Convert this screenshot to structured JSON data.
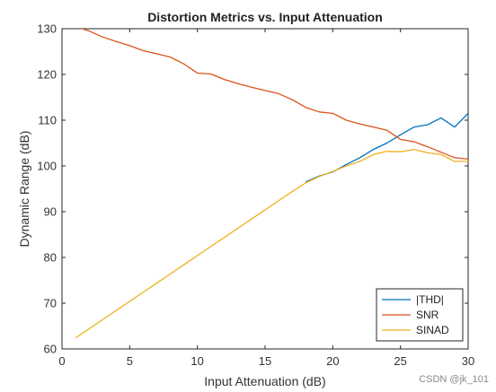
{
  "chart_data": {
    "type": "line",
    "title": "Distortion Metrics vs. Input Attenuation",
    "xlabel": "Input Attenuation (dB)",
    "ylabel": "Dynamic Range (dB)",
    "xlim": [
      0,
      30
    ],
    "ylim": [
      60,
      130
    ],
    "xticks": [
      0,
      5,
      10,
      15,
      20,
      25,
      30
    ],
    "yticks": [
      60,
      70,
      80,
      90,
      100,
      110,
      120,
      130
    ],
    "grid": false,
    "legend_position": "bottom-right",
    "series": [
      {
        "name": "|THD|",
        "color": "#0072BD",
        "x": [
          18,
          19,
          20,
          21,
          22,
          23,
          24,
          25,
          26,
          27,
          28,
          29,
          30
        ],
        "y": [
          96.5,
          97.8,
          98.7,
          100.3,
          101.8,
          103.6,
          105.0,
          106.8,
          108.5,
          109.0,
          110.5,
          108.5,
          111.5
        ]
      },
      {
        "name": "SNR",
        "color": "#D95319",
        "x": [
          1,
          2,
          3,
          4,
          5,
          6,
          7,
          8,
          9,
          10,
          11,
          12,
          13,
          14,
          15,
          16,
          17,
          18,
          19,
          20,
          21,
          22,
          23,
          24,
          25,
          26,
          27,
          28,
          29,
          30
        ],
        "y": [
          130.5,
          129.5,
          128.2,
          127.2,
          126.3,
          125.2,
          124.5,
          123.8,
          122.3,
          120.3,
          120.1,
          118.9,
          118.0,
          117.2,
          116.5,
          115.8,
          114.5,
          112.8,
          111.8,
          111.5,
          110.0,
          109.2,
          108.5,
          107.8,
          105.8,
          105.3,
          104.2,
          103.0,
          101.8,
          101.5
        ]
      },
      {
        "name": "SINAD",
        "color": "#EDB120",
        "x": [
          1,
          2,
          3,
          4,
          5,
          6,
          7,
          8,
          9,
          10,
          11,
          12,
          13,
          14,
          15,
          16,
          17,
          18,
          19,
          20,
          21,
          22,
          23,
          24,
          25,
          26,
          27,
          28,
          29,
          30
        ],
        "y": [
          62.4,
          64.4,
          66.4,
          68.4,
          70.4,
          72.4,
          74.4,
          76.4,
          78.4,
          80.4,
          82.4,
          84.4,
          86.4,
          88.4,
          90.4,
          92.4,
          94.4,
          96.3,
          97.7,
          98.8,
          100.0,
          101.0,
          102.5,
          103.2,
          103.1,
          103.6,
          102.9,
          102.5,
          101.0,
          101.0
        ]
      }
    ]
  },
  "watermark": "CSDN @jk_101"
}
